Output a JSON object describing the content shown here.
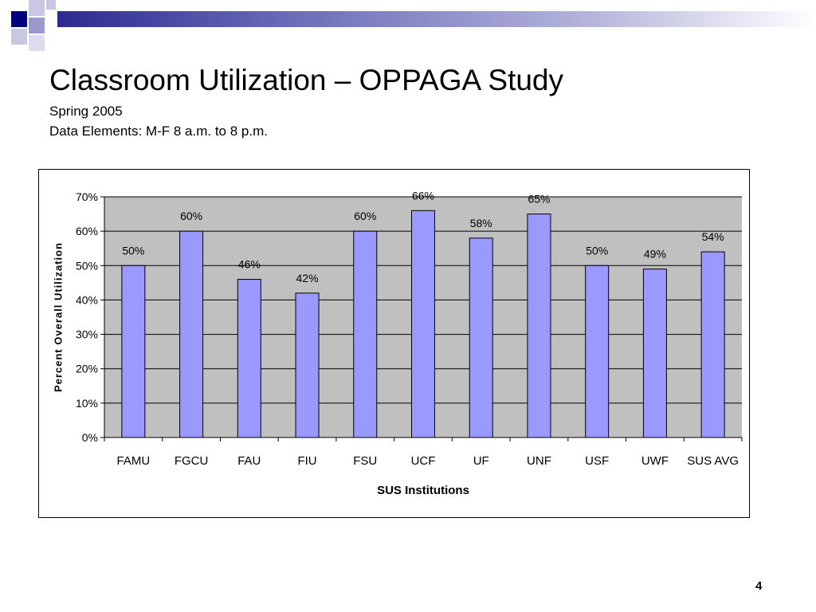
{
  "slide": {
    "title": "Classroom Utilization – OPPAGA Study",
    "subtitle_1": "Spring 2005",
    "subtitle_2": "Data Elements:  M-F 8 a.m. to 8 p.m.",
    "page_number": "4"
  },
  "colors": {
    "bar_fill": "#9999ff",
    "plot_background": "#c0c0c0",
    "deco_dark": "#00007f",
    "deco_light": "#9999cc"
  },
  "chart_data": {
    "type": "bar",
    "categories": [
      "FAMU",
      "FGCU",
      "FAU",
      "FIU",
      "FSU",
      "UCF",
      "UF",
      "UNF",
      "USF",
      "UWF",
      "SUS AVG"
    ],
    "values": [
      50,
      60,
      46,
      42,
      60,
      66,
      58,
      65,
      50,
      49,
      54
    ],
    "data_labels": [
      "50%",
      "60%",
      "46%",
      "42%",
      "60%",
      "66%",
      "58%",
      "65%",
      "50%",
      "49%",
      "54%"
    ],
    "title": "",
    "xlabel": "SUS Institutions",
    "ylabel": "Percent Overall Utilization",
    "ylim": [
      0,
      70
    ],
    "yticks": [
      0,
      10,
      20,
      30,
      40,
      50,
      60,
      70
    ],
    "ytick_labels": [
      "0%",
      "10%",
      "20%",
      "30%",
      "40%",
      "50%",
      "60%",
      "70%"
    ],
    "grid": true,
    "legend": "none"
  }
}
